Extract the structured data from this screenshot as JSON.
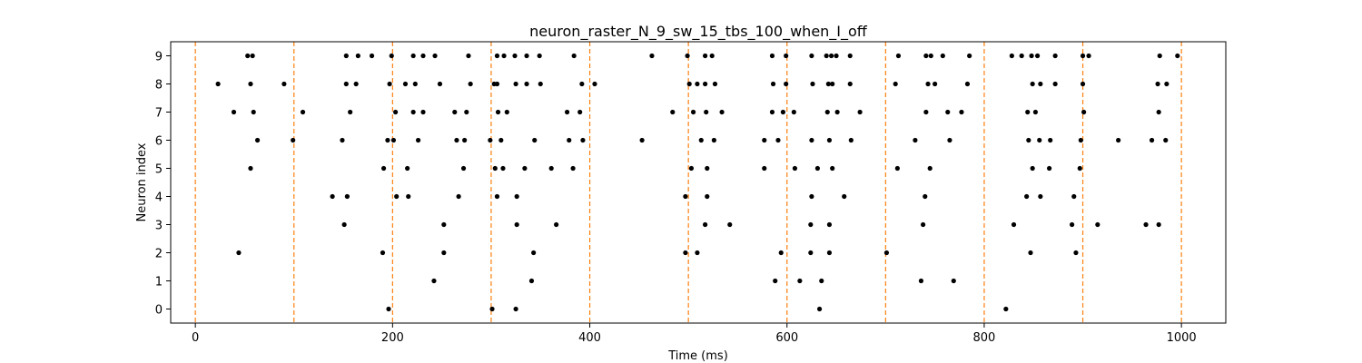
{
  "chart_data": {
    "type": "scatter",
    "title": "neuron_raster_N_9_sw_15_tbs_100_when_I_off",
    "xlabel": "Time (ms)",
    "ylabel": "Neuron index",
    "xlim": [
      -25,
      1045
    ],
    "ylim": [
      -0.5,
      9.5
    ],
    "xticks": [
      0,
      200,
      400,
      600,
      800,
      1000
    ],
    "yticks": [
      0,
      1,
      2,
      3,
      4,
      5,
      6,
      7,
      8,
      9
    ],
    "grid": false,
    "marker_color": "#000000",
    "vlines": {
      "x": [
        0,
        100,
        200,
        300,
        400,
        500,
        600,
        700,
        800,
        900,
        1000
      ],
      "color": "#ff7f0e",
      "style": "dashed"
    },
    "series": [
      {
        "y": 0,
        "x": [
          196,
          301,
          325,
          633,
          822
        ]
      },
      {
        "y": 1,
        "x": [
          242,
          341,
          588,
          613,
          635,
          736,
          769
        ]
      },
      {
        "y": 2,
        "x": [
          44,
          190,
          252,
          343,
          497,
          509,
          594,
          624,
          643,
          701,
          847,
          893
        ]
      },
      {
        "y": 3,
        "x": [
          151,
          252,
          326,
          366,
          517,
          542,
          624,
          643,
          738,
          830,
          889,
          915,
          964,
          977
        ]
      },
      {
        "y": 4,
        "x": [
          139,
          154,
          204,
          216,
          267,
          306,
          326,
          497,
          519,
          625,
          658,
          740,
          843,
          857,
          891
        ]
      },
      {
        "y": 5,
        "x": [
          56,
          191,
          215,
          272,
          304,
          312,
          334,
          361,
          383,
          503,
          519,
          577,
          608,
          631,
          646,
          712,
          745,
          849,
          866,
          897
        ]
      },
      {
        "y": 6,
        "x": [
          63,
          99,
          149,
          195,
          201,
          226,
          265,
          273,
          299,
          310,
          344,
          379,
          393,
          453,
          513,
          526,
          577,
          591,
          625,
          643,
          665,
          730,
          765,
          845,
          856,
          867,
          898,
          936,
          970,
          984
        ]
      },
      {
        "y": 7,
        "x": [
          39,
          59,
          109,
          157,
          203,
          221,
          231,
          263,
          275,
          307,
          316,
          377,
          390,
          484,
          505,
          518,
          534,
          585,
          596,
          607,
          641,
          651,
          674,
          741,
          763,
          777,
          844,
          852,
          901,
          977
        ]
      },
      {
        "y": 8,
        "x": [
          23,
          56,
          90,
          153,
          163,
          197,
          213,
          223,
          248,
          279,
          303,
          306,
          325,
          336,
          350,
          392,
          405,
          501,
          509,
          517,
          527,
          586,
          599,
          626,
          642,
          646,
          664,
          710,
          743,
          750,
          783,
          849,
          857,
          872,
          900,
          976,
          985
        ]
      },
      {
        "y": 9,
        "x": [
          53,
          58,
          153,
          165,
          179,
          199,
          221,
          231,
          243,
          277,
          306,
          313,
          324,
          336,
          349,
          384,
          463,
          499,
          517,
          524,
          585,
          599,
          625,
          640,
          645,
          650,
          664,
          713,
          741,
          746,
          758,
          785,
          828,
          838,
          848,
          854,
          872,
          900,
          906,
          978,
          996
        ]
      }
    ]
  }
}
